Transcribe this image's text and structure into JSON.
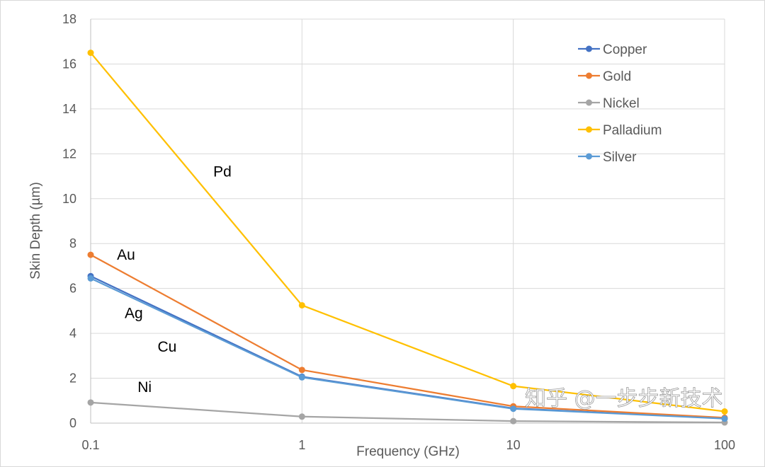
{
  "chart_data": {
    "type": "line",
    "title": "",
    "xlabel": "Frequency (GHz)",
    "ylabel": "Skin Depth (µm)",
    "xscale": "log",
    "x": [
      0.1,
      1,
      10,
      100
    ],
    "xticks": [
      "0.1",
      "1",
      "10",
      "100"
    ],
    "ylim": [
      0,
      18
    ],
    "yticks": [
      0,
      2,
      4,
      6,
      8,
      10,
      12,
      14,
      16,
      18
    ],
    "grid": true,
    "legend_position": "top-right",
    "series": [
      {
        "name": "Copper",
        "color": "#4472C4",
        "values": [
          6.55,
          2.07,
          0.66,
          0.21
        ]
      },
      {
        "name": "Gold",
        "color": "#ED7D31",
        "values": [
          7.5,
          2.37,
          0.75,
          0.24
        ]
      },
      {
        "name": "Nickel",
        "color": "#A5A5A5",
        "values": [
          0.92,
          0.29,
          0.09,
          0.03
        ]
      },
      {
        "name": "Palladium",
        "color": "#FFC000",
        "values": [
          16.5,
          5.25,
          1.65,
          0.52
        ]
      },
      {
        "name": "Silver",
        "color": "#5B9BD5",
        "values": [
          6.45,
          2.04,
          0.64,
          0.2
        ]
      }
    ],
    "annotations": [
      {
        "text": "Pd",
        "x": 0.42,
        "y": 11.2
      },
      {
        "text": "Au",
        "x": 0.147,
        "y": 7.5
      },
      {
        "text": "Ag",
        "x": 0.16,
        "y": 4.9
      },
      {
        "text": "Cu",
        "x": 0.23,
        "y": 3.4
      },
      {
        "text": "Ni",
        "x": 0.18,
        "y": 1.6
      }
    ]
  },
  "watermark": "知乎 @一步步新技术"
}
